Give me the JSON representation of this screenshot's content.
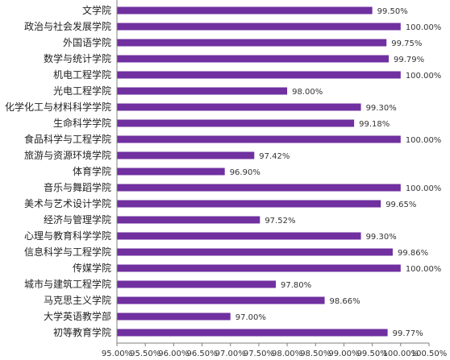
{
  "chart_data": {
    "type": "bar",
    "orientation": "horizontal",
    "categories": [
      "文学院",
      "政治与社会发展学院",
      "外国语学院",
      "数学与统计学院",
      "机电工程学院",
      "光电工程学院",
      "化学化工与材料科学学院",
      "生命科学学院",
      "食品科学与工程学院",
      "旅游与资源环境学院",
      "体育学院",
      "音乐与舞蹈学院",
      "美术与艺术设计学院",
      "经济与管理学院",
      "心理与教育科学学院",
      "信息科学与工程学院",
      "传媒学院",
      "城市与建筑工程学院",
      "马克思主义学院",
      "大学英语教学部",
      "初等教育学院"
    ],
    "values": [
      99.5,
      100.0,
      99.75,
      99.79,
      100.0,
      98.0,
      99.3,
      99.18,
      100.0,
      97.42,
      96.9,
      100.0,
      99.65,
      97.52,
      99.3,
      99.86,
      100.0,
      97.8,
      98.66,
      97.0,
      99.77
    ],
    "value_labels": [
      "99.50%",
      "100.00%",
      "99.75%",
      "99.79%",
      "100.00%",
      "98.00%",
      "99.30%",
      "99.18%",
      "100.00%",
      "97.42%",
      "96.90%",
      "100.00%",
      "99.65%",
      "97.52%",
      "99.30%",
      "99.86%",
      "100.00%",
      "97.80%",
      "98.66%",
      "97.00%",
      "99.77%"
    ],
    "xlim": [
      95.0,
      100.5
    ],
    "x_ticks": [
      "95.00%",
      "95.50%",
      "96.00%",
      "96.50%",
      "97.00%",
      "97.50%",
      "98.00%",
      "98.50%",
      "99.00%",
      "99.50%",
      "100.00%",
      "100.50%"
    ],
    "title": "",
    "xlabel": "",
    "ylabel": "",
    "grid": false,
    "colors": {
      "bar": "#7030a0",
      "axis": "#7f7f7f",
      "text": "#222222"
    }
  }
}
